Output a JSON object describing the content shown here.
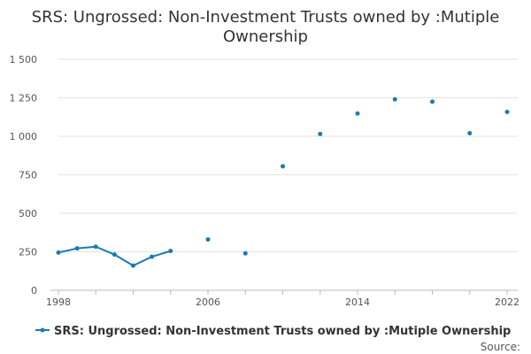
{
  "chart_data": {
    "type": "line",
    "title_lines": [
      "SRS: Ungrossed: Non-Investment Trusts owned by :Mutiple",
      "Ownership"
    ],
    "xlabel": "",
    "ylabel": "",
    "xlim": [
      1998,
      2022
    ],
    "ylim": [
      0,
      1500
    ],
    "y_ticks": [
      0,
      250,
      500,
      750,
      1000,
      1250,
      1500
    ],
    "y_tick_labels": [
      "0",
      "250",
      "500",
      "750",
      "1 000",
      "1 250",
      "1 500"
    ],
    "x_ticks": [
      1998,
      2006,
      2014,
      2022
    ],
    "x_tick_labels": [
      "1998",
      "2006",
      "2014",
      "2022"
    ],
    "grid": "horizontal",
    "legend_position": "bottom",
    "color": "#1a7ab5",
    "series": [
      {
        "name": "SRS: Ungrossed: Non-Investment Trusts owned by :Mutiple Ownership",
        "points": [
          [
            1998,
            245
          ],
          [
            1999,
            272
          ],
          [
            2000,
            283
          ],
          [
            2001,
            232
          ],
          [
            2002,
            160
          ],
          [
            2003,
            218
          ],
          [
            2004,
            255
          ],
          [
            2006,
            330
          ],
          [
            2008,
            240
          ],
          [
            2010,
            805
          ],
          [
            2012,
            1015
          ],
          [
            2014,
            1148
          ],
          [
            2016,
            1240
          ],
          [
            2018,
            1225
          ],
          [
            2020,
            1020
          ],
          [
            2022,
            1158
          ]
        ]
      }
    ]
  },
  "source_label": "Source:"
}
